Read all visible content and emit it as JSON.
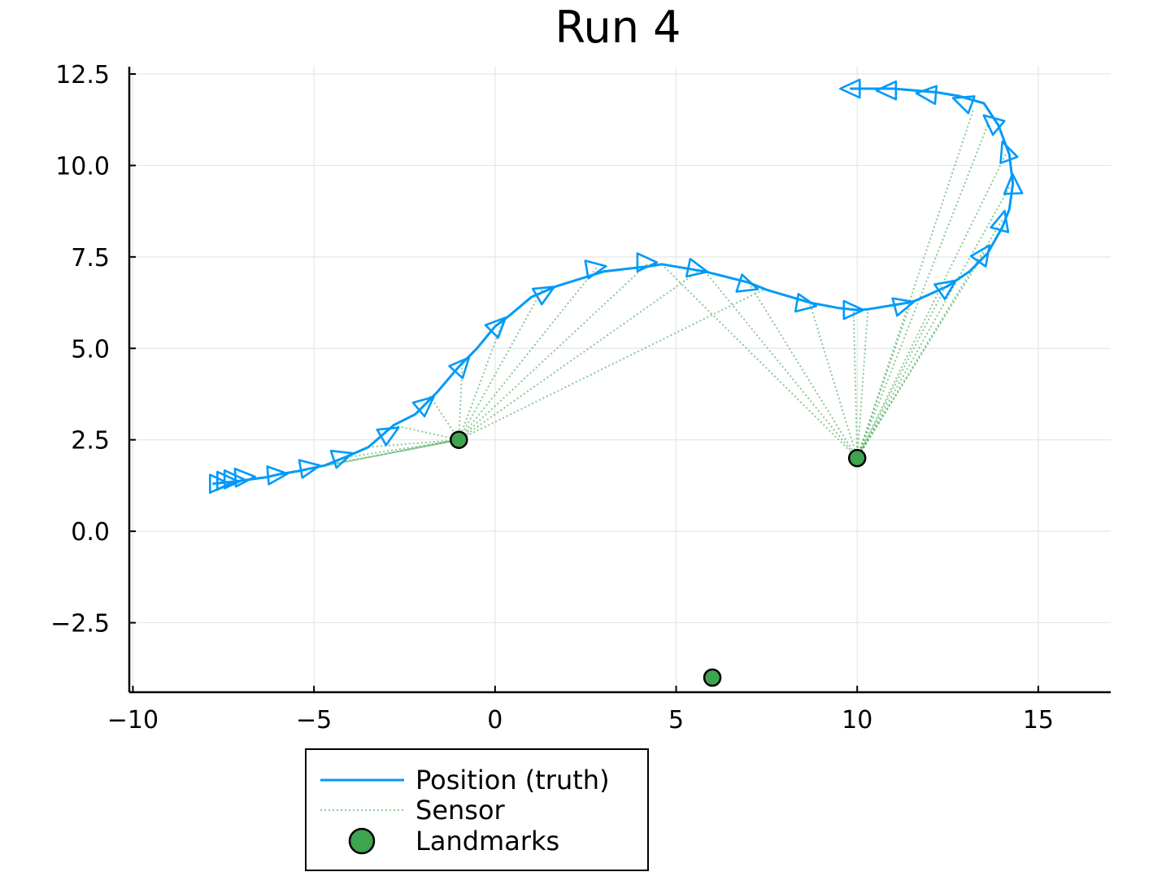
{
  "chart_data": {
    "type": "scatter",
    "title": "Run 4",
    "xlabel": "",
    "ylabel": "",
    "xlim": [
      -10.1,
      17
    ],
    "ylim": [
      -4.4,
      12.7
    ],
    "x_ticks": [
      -10,
      -5,
      0,
      5,
      10,
      15
    ],
    "x_tick_labels": [
      "−10",
      "−5",
      "0",
      "5",
      "10",
      "15"
    ],
    "y_ticks": [
      -2.5,
      0.0,
      2.5,
      5.0,
      7.5,
      10.0,
      12.5
    ],
    "y_tick_labels": [
      "−2.5",
      "0.0",
      "2.5",
      "5.0",
      "7.5",
      "10.0",
      "12.5"
    ],
    "grid": true,
    "legend_position": "bottom-outside",
    "colors": {
      "truth": "#009AFA",
      "sensor": "#3EA44E",
      "landmark": "#3EA44E"
    },
    "series": [
      {
        "name": "Position (truth)",
        "style": "line-with-triangles",
        "x": [
          -7.8,
          -7.5,
          -7.2,
          -6.9,
          -6.6,
          -6.3,
          -6.0,
          -5.4,
          -4.7,
          -4.2,
          -3.5,
          -2.8,
          -2.2,
          -1.6,
          -1.0,
          -0.5,
          0.0,
          0.4,
          1.0,
          1.7,
          3.0,
          4.3,
          4.6,
          5.8,
          7.0,
          7.5,
          8.7,
          9.5,
          10.0,
          10.3,
          11.4,
          11.6,
          12.5,
          13.1,
          13.6,
          14.0,
          14.2,
          14.3,
          14.2,
          13.9,
          13.5,
          12.8,
          12.2,
          11.0,
          10.4,
          9.8
        ],
        "y": [
          1.3,
          1.33,
          1.36,
          1.4,
          1.44,
          1.48,
          1.55,
          1.65,
          1.8,
          2.0,
          2.3,
          2.9,
          3.2,
          3.8,
          4.5,
          5.0,
          5.6,
          5.9,
          6.4,
          6.7,
          7.1,
          7.25,
          7.3,
          7.1,
          6.8,
          6.6,
          6.25,
          6.1,
          6.05,
          6.07,
          6.25,
          6.3,
          6.7,
          7.1,
          7.6,
          8.3,
          8.8,
          9.5,
          10.3,
          11.1,
          11.7,
          11.9,
          12.0,
          12.1,
          12.1,
          12.1
        ]
      },
      {
        "name": "Sensor",
        "style": "dotted-lines",
        "segments": [
          [
            [
              -6.0,
              1.55
            ],
            [
              -1.0,
              2.5
            ]
          ],
          [
            [
              -5.4,
              1.65
            ],
            [
              -1.0,
              2.5
            ]
          ],
          [
            [
              -4.7,
              1.8
            ],
            [
              -1.0,
              2.5
            ]
          ],
          [
            [
              -4.2,
              2.0
            ],
            [
              -1.0,
              2.5
            ]
          ],
          [
            [
              -3.5,
              2.3
            ],
            [
              -1.0,
              2.5
            ]
          ],
          [
            [
              -2.8,
              2.9
            ],
            [
              -1.0,
              2.5
            ]
          ],
          [
            [
              -1.8,
              3.7
            ],
            [
              -1.0,
              2.5
            ]
          ],
          [
            [
              -0.9,
              4.7
            ],
            [
              -1.0,
              2.5
            ]
          ],
          [
            [
              0.2,
              5.7
            ],
            [
              -1.0,
              2.5
            ]
          ],
          [
            [
              1.3,
              6.6
            ],
            [
              -1.0,
              2.5
            ]
          ],
          [
            [
              2.8,
              7.2
            ],
            [
              -1.0,
              2.5
            ]
          ],
          [
            [
              4.2,
              7.3
            ],
            [
              -1.0,
              2.5
            ]
          ],
          [
            [
              5.6,
              7.1
            ],
            [
              -1.0,
              2.5
            ]
          ],
          [
            [
              7.4,
              6.6
            ],
            [
              -1.0,
              2.5
            ]
          ],
          [
            [
              4.6,
              7.3
            ],
            [
              10.0,
              2.0
            ]
          ],
          [
            [
              5.8,
              7.1
            ],
            [
              10.0,
              2.0
            ]
          ],
          [
            [
              7.0,
              6.8
            ],
            [
              10.0,
              2.0
            ]
          ],
          [
            [
              8.7,
              6.2
            ],
            [
              10.0,
              2.0
            ]
          ],
          [
            [
              9.9,
              6.0
            ],
            [
              10.0,
              2.0
            ]
          ],
          [
            [
              10.3,
              6.1
            ],
            [
              10.0,
              2.0
            ]
          ],
          [
            [
              11.5,
              6.3
            ],
            [
              10.0,
              2.0
            ]
          ],
          [
            [
              12.5,
              6.8
            ],
            [
              10.0,
              2.0
            ]
          ],
          [
            [
              13.5,
              7.6
            ],
            [
              10.0,
              2.0
            ]
          ],
          [
            [
              14.0,
              8.5
            ],
            [
              10.0,
              2.0
            ]
          ],
          [
            [
              14.2,
              9.4
            ],
            [
              10.0,
              2.0
            ]
          ],
          [
            [
              14.1,
              10.3
            ],
            [
              10.0,
              2.0
            ]
          ],
          [
            [
              13.6,
              11.1
            ],
            [
              10.0,
              2.0
            ]
          ],
          [
            [
              13.2,
              11.5
            ],
            [
              10.0,
              2.0
            ]
          ]
        ]
      },
      {
        "name": "Landmarks",
        "style": "markers",
        "x": [
          -1.0,
          10.0,
          6.0
        ],
        "y": [
          2.5,
          2.0,
          -4.0
        ]
      }
    ],
    "headings": [
      {
        "x": -7.6,
        "y": 1.3,
        "angle": 0
      },
      {
        "x": -7.4,
        "y": 1.38,
        "angle": 0
      },
      {
        "x": -7.2,
        "y": 1.42,
        "angle": 0
      },
      {
        "x": -6.9,
        "y": 1.48,
        "angle": 3
      },
      {
        "x": -6.0,
        "y": 1.55,
        "angle": 5
      },
      {
        "x": -5.1,
        "y": 1.75,
        "angle": 10
      },
      {
        "x": -4.2,
        "y": 2.05,
        "angle": 18
      },
      {
        "x": -2.9,
        "y": 2.7,
        "angle": 30
      },
      {
        "x": -1.9,
        "y": 3.5,
        "angle": 40
      },
      {
        "x": -0.9,
        "y": 4.55,
        "angle": 48
      },
      {
        "x": 0.1,
        "y": 5.65,
        "angle": 45
      },
      {
        "x": 1.4,
        "y": 6.55,
        "angle": 30
      },
      {
        "x": 2.8,
        "y": 7.2,
        "angle": 10
      },
      {
        "x": 4.2,
        "y": 7.35,
        "angle": 0
      },
      {
        "x": 5.6,
        "y": 7.15,
        "angle": -12
      },
      {
        "x": 7.0,
        "y": 6.7,
        "angle": -18
      },
      {
        "x": 8.6,
        "y": 6.2,
        "angle": -10
      },
      {
        "x": 9.9,
        "y": 6.05,
        "angle": 0
      },
      {
        "x": 11.3,
        "y": 6.2,
        "angle": 15
      },
      {
        "x": 12.5,
        "y": 6.7,
        "angle": 35
      },
      {
        "x": 13.5,
        "y": 7.6,
        "angle": 55
      },
      {
        "x": 14.0,
        "y": 8.5,
        "angle": 75
      },
      {
        "x": 14.3,
        "y": 9.5,
        "angle": 92
      },
      {
        "x": 14.1,
        "y": 10.4,
        "angle": 110
      },
      {
        "x": 13.7,
        "y": 11.2,
        "angle": 140
      },
      {
        "x": 12.9,
        "y": 11.75,
        "angle": 160
      },
      {
        "x": 11.9,
        "y": 11.95,
        "angle": 175
      },
      {
        "x": 10.8,
        "y": 12.05,
        "angle": 180
      },
      {
        "x": 9.8,
        "y": 12.1,
        "angle": 180
      }
    ]
  }
}
